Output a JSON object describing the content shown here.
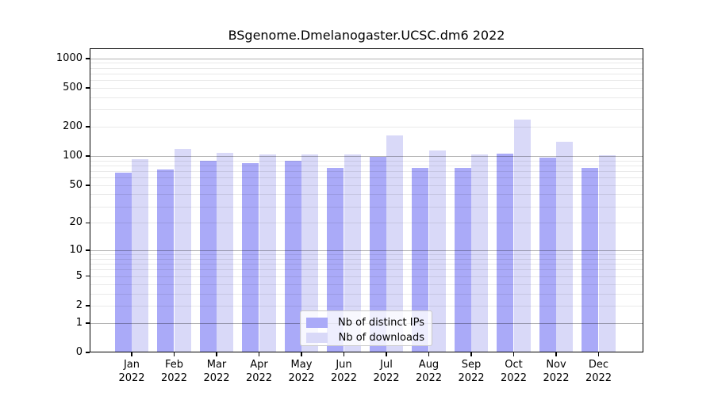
{
  "chart_data": {
    "type": "bar",
    "title": "BSgenome.Dmelanogaster.UCSC.dm6 2022",
    "categories": [
      "Jan 2022",
      "Feb 2022",
      "Mar 2022",
      "Apr 2022",
      "May 2022",
      "Jun 2022",
      "Jul 2022",
      "Aug 2022",
      "Sep 2022",
      "Oct 2022",
      "Nov 2022",
      "Dec 2022"
    ],
    "series": [
      {
        "name": "Nb of distinct IPs",
        "color": "#aaaaf8",
        "values": [
          68,
          73,
          89,
          85,
          89,
          75,
          98,
          76,
          76,
          105,
          97,
          76
        ]
      },
      {
        "name": "Nb of downloads",
        "color": "#d9d9f8",
        "values": [
          93,
          119,
          108,
          104,
          104,
          104,
          163,
          115,
          104,
          235,
          140,
          102
        ]
      }
    ],
    "xlabel": "",
    "ylabel": "",
    "y_scale": "log1p",
    "y_ticks": [
      0,
      1,
      2,
      5,
      10,
      20,
      50,
      100,
      200,
      500,
      1000
    ],
    "ylim": [
      0,
      1270
    ],
    "grid": {
      "on": true,
      "major": [
        1,
        10,
        100,
        1000
      ],
      "minor": [
        2,
        3,
        4,
        5,
        6,
        7,
        8,
        9,
        20,
        30,
        40,
        50,
        60,
        70,
        80,
        90,
        200,
        300,
        400,
        500,
        600,
        700,
        800,
        900
      ]
    },
    "legend_position": "inside-bottom-center"
  },
  "colors": {
    "bar_distinct_ips": "#aaaaf8",
    "bar_downloads": "#d9d9f8",
    "grid_major": "#b3b3b3",
    "grid_minor": "#e9e9e9",
    "spine": "#000000",
    "text": "#000000",
    "legend_border": "#c8c8c8"
  }
}
